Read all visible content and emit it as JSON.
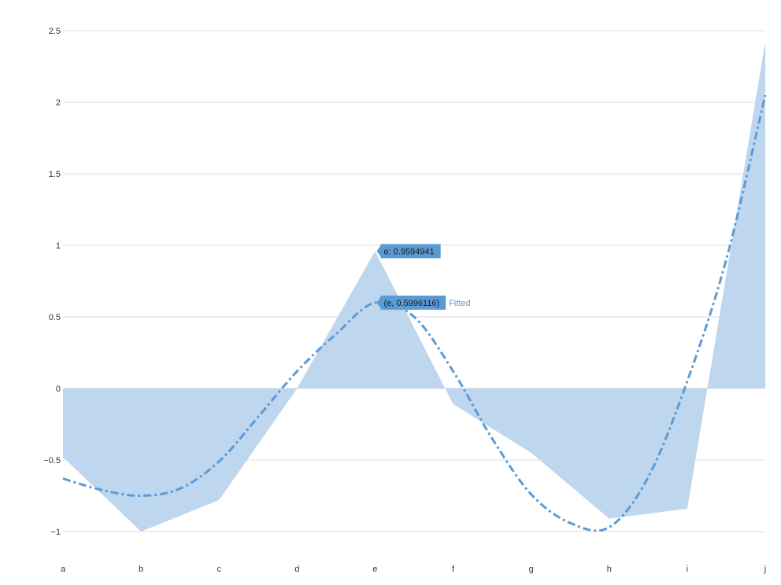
{
  "chart_data": {
    "type": "area",
    "categories": [
      "a",
      "b",
      "c",
      "d",
      "e",
      "f",
      "g",
      "h",
      "i",
      "j"
    ],
    "ylim": [
      -1,
      2.5
    ],
    "y_ticks": [
      -1,
      -0.5,
      0,
      0.5,
      1,
      1.5,
      2,
      2.5
    ],
    "y_tick_labels": [
      "−1",
      "−0.5",
      "0",
      "0.5",
      "1",
      "1.5",
      "2",
      "2.5"
    ],
    "grid": true,
    "series": [
      {
        "type": "area",
        "color": "#bed6ee",
        "values": [
          -0.48,
          -1.0,
          -0.78,
          0.0,
          0.9594941,
          -0.11,
          -0.45,
          -0.91,
          -0.84,
          2.42
        ]
      },
      {
        "name": "Fitted",
        "type": "line",
        "style": "dash-dot",
        "color": "#5b9bd5",
        "x": [
          0,
          0.5,
          1,
          1.5,
          2,
          2.5,
          3,
          3.5,
          4,
          4.5,
          5,
          5.5,
          6,
          6.5,
          7,
          7.5,
          8,
          8.5,
          9
        ],
        "values": [
          -0.63,
          -0.71,
          -0.75,
          -0.7,
          -0.51,
          -0.2,
          0.12,
          0.38,
          0.5996116,
          0.5,
          0.12,
          -0.35,
          -0.74,
          -0.94,
          -0.97,
          -0.62,
          0.05,
          0.9,
          2.05
        ]
      }
    ],
    "annotations": [
      {
        "id": "area_peak",
        "text": "e: 0.9594941",
        "category": "e",
        "value": 0.9594941
      },
      {
        "id": "fitted_peak",
        "text": "(e, 0.5996116)",
        "category": "e",
        "value": 0.5996116,
        "series_label": "Fitted"
      }
    ]
  }
}
